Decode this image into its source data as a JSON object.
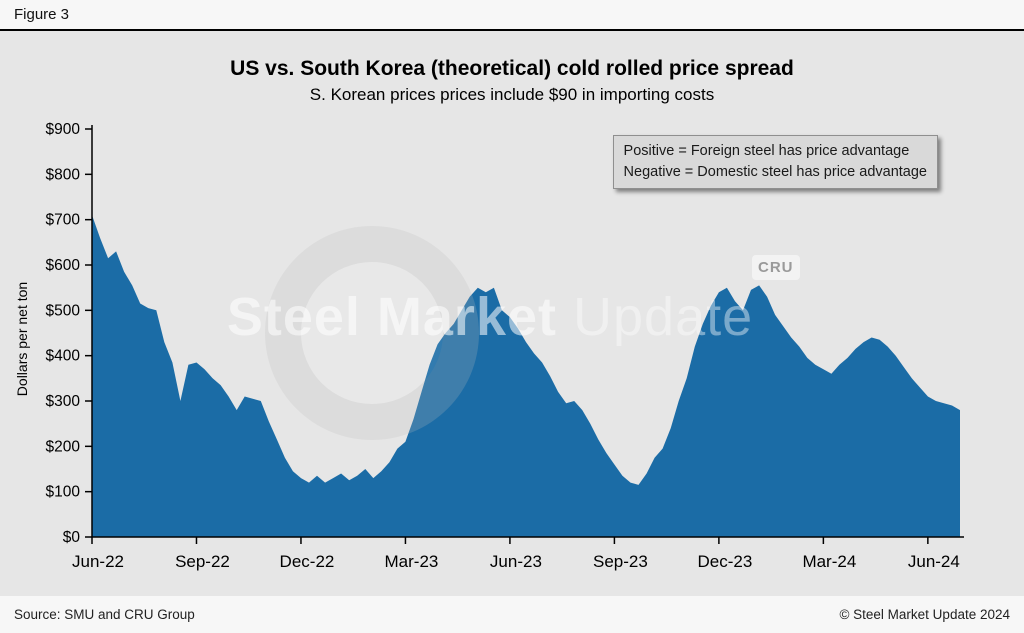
{
  "figure_label": "Figure 3",
  "chart": {
    "title": "US vs. South Korea (theoretical) cold rolled price spread",
    "subtitle": "S. Korean prices prices include $90 in importing costs",
    "annotation_line1": "Positive = Foreign steel has price advantage",
    "annotation_line2": "Negative = Domestic steel has price advantage",
    "ylabel": "Dollars per net ton"
  },
  "chart_data": {
    "type": "area",
    "title": "US vs. South Korea (theoretical) cold rolled price spread",
    "subtitle": "S. Korean prices prices include $90 in importing costs",
    "ylabel": "Dollars per net ton",
    "xlabel": "",
    "ylim": [
      0,
      900
    ],
    "ytick_values": [
      0,
      100,
      200,
      300,
      400,
      500,
      600,
      700,
      800,
      900
    ],
    "ytick_labels": [
      "$0",
      "$100",
      "$200",
      "$300",
      "$400",
      "$500",
      "$600",
      "$700",
      "$800",
      "$900"
    ],
    "x_tick_labels": [
      "Jun-22",
      "Sep-22",
      "Dec-22",
      "Mar-23",
      "Jun-23",
      "Sep-23",
      "Dec-23",
      "Mar-24",
      "Jun-24"
    ],
    "x_tick_indices": [
      0,
      13,
      26,
      39,
      52,
      65,
      78,
      91,
      104
    ],
    "grid": false,
    "legend_position": "top-right-annotation",
    "values": [
      710,
      660,
      615,
      630,
      585,
      555,
      515,
      505,
      500,
      430,
      385,
      300,
      380,
      385,
      370,
      350,
      335,
      310,
      280,
      310,
      305,
      300,
      255,
      215,
      175,
      145,
      130,
      120,
      135,
      120,
      130,
      140,
      125,
      135,
      150,
      130,
      145,
      165,
      195,
      210,
      260,
      320,
      380,
      425,
      450,
      470,
      500,
      530,
      550,
      540,
      550,
      500,
      485,
      460,
      430,
      405,
      385,
      355,
      320,
      295,
      300,
      280,
      250,
      215,
      185,
      160,
      135,
      120,
      115,
      140,
      175,
      195,
      240,
      300,
      350,
      420,
      470,
      510,
      540,
      550,
      520,
      500,
      545,
      555,
      530,
      490,
      465,
      440,
      420,
      395,
      380,
      370,
      360,
      380,
      395,
      415,
      430,
      440,
      435,
      420,
      400,
      375,
      350,
      330,
      310,
      300,
      295,
      290,
      280
    ]
  },
  "watermark": {
    "text_bold": "Steel Market",
    "text_light": " Update",
    "badge": "CRU"
  },
  "footer": {
    "source": "Source: SMU and CRU Group",
    "copyright": "© Steel Market Update 2024"
  },
  "colors": {
    "area": "#1b6ca6",
    "background": "#e6e6e6",
    "annotation_bg": "#d9d9d9",
    "axis": "#000000"
  }
}
